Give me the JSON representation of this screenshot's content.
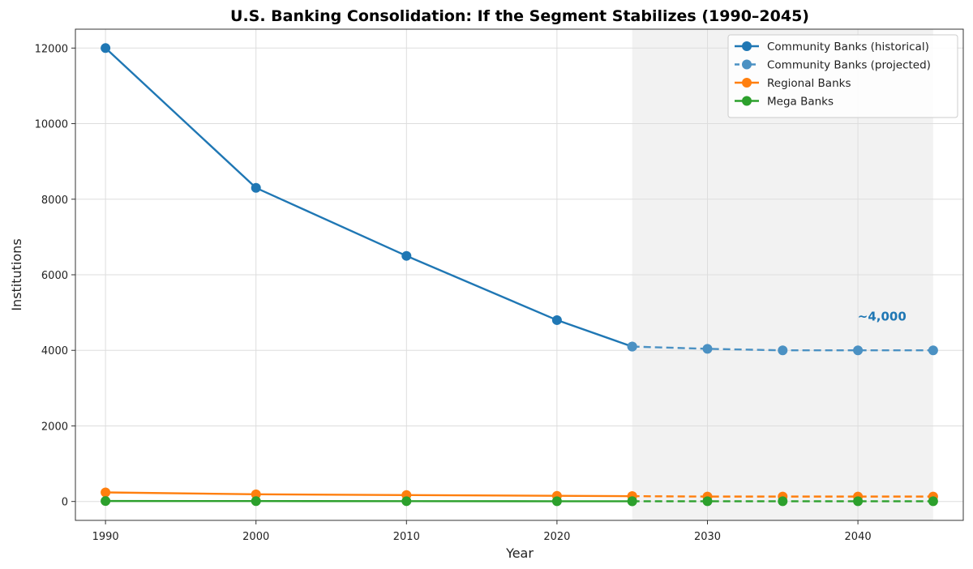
{
  "chart_data": {
    "type": "line",
    "title": "U.S. Banking Consolidation: If the Segment Stabilizes (1990–2045)",
    "xlabel": "Year",
    "ylabel": "Institutions",
    "xlim": [
      1988,
      2047
    ],
    "ylim": [
      -500,
      12500
    ],
    "xticks": [
      1990,
      2000,
      2010,
      2020,
      2030,
      2040
    ],
    "yticks": [
      0,
      2000,
      4000,
      6000,
      8000,
      10000,
      12000
    ],
    "grid": true,
    "legend_position": "top-right",
    "projection_region": [
      2025,
      2045
    ],
    "series": [
      {
        "name": "Community Banks (historical)",
        "color": "#1f77b4",
        "style": "solid",
        "x": [
          1990,
          2000,
          2010,
          2020,
          2025
        ],
        "y": [
          12000,
          8300,
          6500,
          4800,
          4100
        ]
      },
      {
        "name": "Community Banks (projected)",
        "color": "#4b91c3",
        "style": "dashed",
        "x": [
          2025,
          2030,
          2035,
          2040,
          2045
        ],
        "y": [
          4100,
          4040,
          4000,
          4000,
          4000
        ]
      },
      {
        "name": "Regional Banks",
        "color": "#ff7f0e",
        "style": "solid",
        "x": [
          1990,
          2000,
          2010,
          2020,
          2025
        ],
        "y": [
          240,
          190,
          170,
          150,
          140
        ]
      },
      {
        "name": "Regional Banks (projected)",
        "color": "#ff7f0e",
        "style": "dashed",
        "in_legend": false,
        "x": [
          2025,
          2030,
          2035,
          2040,
          2045
        ],
        "y": [
          140,
          130,
          130,
          130,
          130
        ]
      },
      {
        "name": "Mega Banks",
        "color": "#2ca02c",
        "style": "solid",
        "x": [
          1990,
          2000,
          2010,
          2020,
          2025
        ],
        "y": [
          12,
          10,
          8,
          6,
          6
        ]
      },
      {
        "name": "Mega Banks (projected)",
        "color": "#2ca02c",
        "style": "dashed",
        "in_legend": false,
        "x": [
          2025,
          2030,
          2035,
          2040,
          2045
        ],
        "y": [
          6,
          6,
          6,
          6,
          6
        ]
      }
    ],
    "annotations": [
      {
        "text": "~4,000",
        "x": 2041.6,
        "y": 4900,
        "color": "#1f77b4"
      }
    ]
  }
}
